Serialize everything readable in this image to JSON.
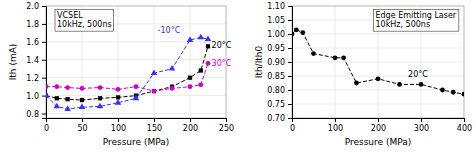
{
  "chart_data": [
    {
      "type": "line",
      "title": "VCSEL\n10kHz, 500ns",
      "x_label": "Pressure (MPa)",
      "y_label": "Ith (mA)",
      "xlim": [
        0,
        250
      ],
      "ylim": [
        0.75,
        2.0
      ],
      "xticks": [
        0,
        50,
        100,
        150,
        200,
        250
      ],
      "yticks": [
        0.8,
        {
          "value": 1.0,
          "label": "1.0"
        },
        1.2,
        1.4,
        1.6,
        1.8,
        {
          "value": 2.0,
          "label": "2.0"
        }
      ],
      "grid": true,
      "series": [
        {
          "color": "#000000",
          "marker": "square",
          "line_style": "dashed",
          "x": [
            0,
            15,
            30,
            50,
            75,
            100,
            125,
            150,
            175,
            200,
            215,
            225
          ],
          "values": [
            1.0,
            0.97,
            0.96,
            0.95,
            0.97,
            0.98,
            1.0,
            1.05,
            1.1,
            1.2,
            1.28,
            1.55
          ]
        },
        {
          "color": "#3333ff",
          "marker": "triangle",
          "line_style": "dashed",
          "x": [
            0,
            15,
            30,
            50,
            75,
            100,
            125,
            150,
            175,
            200,
            215,
            225
          ],
          "values": [
            1.0,
            0.88,
            0.85,
            0.87,
            0.88,
            0.92,
            0.97,
            1.25,
            1.3,
            1.62,
            1.65,
            1.63
          ]
        },
        {
          "color": "#cc00cc",
          "marker": "circle",
          "line_style": "dashed",
          "x": [
            0,
            15,
            30,
            50,
            75,
            100,
            125,
            150,
            175,
            200,
            215,
            225
          ],
          "values": [
            1.1,
            1.1,
            1.09,
            1.08,
            1.09,
            1.07,
            1.1,
            1.05,
            1.08,
            1.1,
            1.12,
            1.36
          ]
        }
      ],
      "annotations": [
        {
          "text": "20°C",
          "x": 230,
          "y": 1.53,
          "color": "#000000"
        },
        {
          "text": "-10°C",
          "x": 155,
          "y": 1.7,
          "color": "#3333ff"
        },
        {
          "text": "30°C",
          "x": 230,
          "y": 1.33,
          "color": "#cc00cc"
        }
      ]
    },
    {
      "type": "line",
      "title": "Edge Emitting Laser\n10kHz, 500ns",
      "x_label": "Pressure (MPa)",
      "y_label": "Ith/Ith0",
      "xlim": [
        0,
        400
      ],
      "ylim": [
        0.7,
        1.1
      ],
      "xticks": [
        0,
        100,
        200,
        300,
        400
      ],
      "yticks": [
        {
          "value": 0.7,
          "label": "0.70"
        },
        0.75,
        {
          "value": 0.8,
          "label": "0.80"
        },
        0.85,
        {
          "value": 0.9,
          "label": "0.90"
        },
        0.95,
        {
          "value": 1.0,
          "label": "1.00"
        },
        1.05,
        {
          "value": 1.1,
          "label": "1.10"
        }
      ],
      "grid": true,
      "series": [
        {
          "color": "#000000",
          "marker": "circle",
          "line_style": "dashed",
          "x": [
            0,
            10,
            25,
            50,
            100,
            120,
            150,
            200,
            250,
            300,
            350,
            375,
            400
          ],
          "values": [
            1.0,
            1.015,
            1.005,
            0.93,
            0.915,
            0.915,
            0.825,
            0.84,
            0.82,
            0.82,
            0.8,
            0.792,
            0.785
          ]
        }
      ],
      "annotations": [
        {
          "text": "20°C",
          "x": 270,
          "y": 0.845,
          "color": "#000000"
        }
      ]
    }
  ]
}
